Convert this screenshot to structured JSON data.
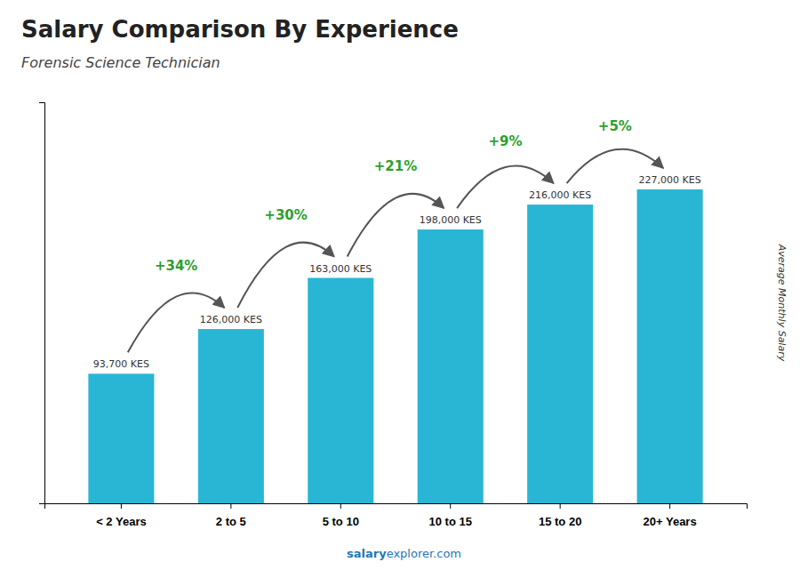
{
  "chart_data": {
    "type": "bar",
    "title": "Salary Comparison By Experience",
    "subtitle": "Forensic Science Technician",
    "ylabel": "Average Monthly Salary",
    "categories": [
      "< 2 Years",
      "2 to 5",
      "5 to 10",
      "10 to 15",
      "15 to 20",
      "20+ Years"
    ],
    "values": [
      93700,
      126000,
      163000,
      198000,
      216000,
      227000
    ],
    "value_labels": [
      "93,700 KES",
      "126,000 KES",
      "163,000 KES",
      "198,000 KES",
      "216,000 KES",
      "227,000 KES"
    ],
    "data_labels": true,
    "annotations": [
      "+34%",
      "+30%",
      "+21%",
      "+9%",
      "+5%"
    ],
    "footer": [
      "salary",
      "explorer.com"
    ],
    "color": "#29b6d4",
    "ylim": [
      0,
      290000
    ],
    "yticks": [],
    "tick_labels": "x",
    "grid": false
  }
}
